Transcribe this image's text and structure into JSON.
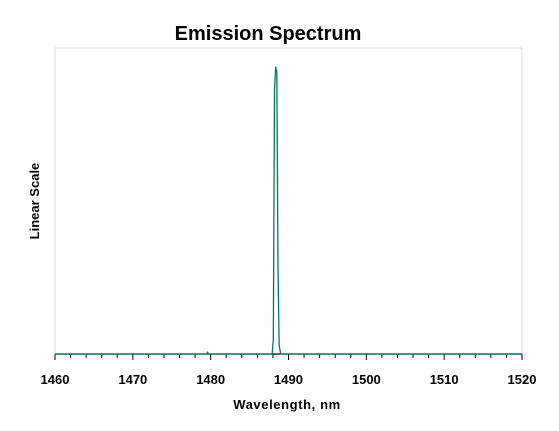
{
  "chart_data": {
    "type": "line",
    "title": "Emission Spectrum",
    "xlabel": "Wavelength, nm",
    "ylabel": "Linear Scale",
    "xlim": [
      1460,
      1520
    ],
    "ylim": [
      0,
      1
    ],
    "x_ticks": [
      1460,
      1470,
      1480,
      1490,
      1500,
      1510,
      1520
    ],
    "y_ticks_shown": false,
    "grid": false,
    "legend": "none",
    "series": [
      {
        "color": "#007a5e",
        "x": [
          1460,
          1479.5,
          1479.6,
          1479.7,
          1487.9,
          1488.05,
          1488.2,
          1488.35,
          1488.5,
          1488.65,
          1488.8,
          1489.0,
          1520
        ],
        "y": [
          0,
          0,
          0.007,
          0,
          0,
          0.05,
          0.92,
          1.0,
          0.98,
          0.3,
          0.03,
          0,
          0
        ]
      }
    ]
  }
}
